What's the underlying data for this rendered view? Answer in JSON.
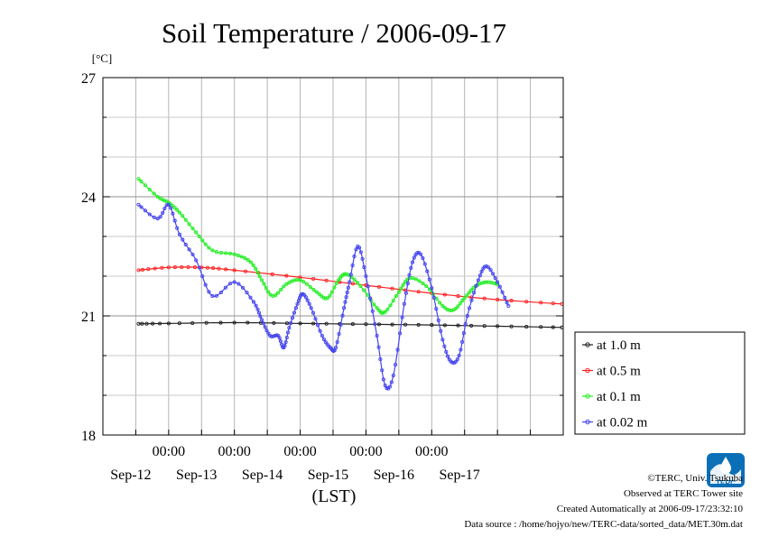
{
  "chart_data": {
    "type": "line",
    "title": "Soil Temperature / 2006-09-17",
    "ylabel": "[°C]",
    "xlabel": "(LST)",
    "ylim": [
      18,
      27
    ],
    "yticks": [
      18,
      21,
      24,
      27
    ],
    "x_range": [
      "2006-09-11 00:00",
      "2006-09-18 00:00"
    ],
    "time_ticks": [
      "00:00",
      "00:00",
      "00:00",
      "00:00",
      "00:00"
    ],
    "day_labels": [
      "Sep-12",
      "Sep-13",
      "Sep-14",
      "Sep-15",
      "Sep-16",
      "Sep-17"
    ],
    "grid": true,
    "legend_position": "right",
    "series": [
      {
        "name": "at 1.0 m",
        "color": "#222222",
        "points": [
          [
            "2006-09-11 13:00",
            20.8
          ],
          [
            "2006-09-12 00:00",
            20.81
          ],
          [
            "2006-09-13 00:00",
            20.83
          ],
          [
            "2006-09-14 00:00",
            20.81
          ],
          [
            "2006-09-15 00:00",
            20.79
          ],
          [
            "2006-09-16 00:00",
            20.77
          ],
          [
            "2006-09-17 00:00",
            20.74
          ],
          [
            "2006-09-17 23:30",
            20.71
          ]
        ]
      },
      {
        "name": "at 0.5 m",
        "color": "#ff2222",
        "points": [
          [
            "2006-09-11 13:00",
            22.15
          ],
          [
            "2006-09-12 00:00",
            22.22
          ],
          [
            "2006-09-12 12:00",
            22.22
          ],
          [
            "2006-09-13 00:00",
            22.15
          ],
          [
            "2006-09-14 00:00",
            21.97
          ],
          [
            "2006-09-15 00:00",
            21.77
          ],
          [
            "2006-09-16 00:00",
            21.57
          ],
          [
            "2006-09-17 00:00",
            21.41
          ],
          [
            "2006-09-17 23:30",
            21.3
          ]
        ]
      },
      {
        "name": "at 0.1 m",
        "color": "#22ee22",
        "points": [
          [
            "2006-09-11 13:00",
            24.45
          ],
          [
            "2006-09-11 20:00",
            24.0
          ],
          [
            "2006-09-12 00:00",
            23.85
          ],
          [
            "2006-09-12 04:00",
            23.6
          ],
          [
            "2006-09-12 10:00",
            23.1
          ],
          [
            "2006-09-12 16:00",
            22.65
          ],
          [
            "2006-09-13 00:00",
            22.55
          ],
          [
            "2006-09-13 06:00",
            22.35
          ],
          [
            "2006-09-13 10:00",
            21.9
          ],
          [
            "2006-09-13 14:00",
            21.5
          ],
          [
            "2006-09-13 19:00",
            21.8
          ],
          [
            "2006-09-14 00:00",
            21.9
          ],
          [
            "2006-09-14 06:00",
            21.6
          ],
          [
            "2006-09-14 10:00",
            21.45
          ],
          [
            "2006-09-14 14:00",
            21.9
          ],
          [
            "2006-09-14 17:00",
            22.05
          ],
          [
            "2006-09-14 22:00",
            21.75
          ],
          [
            "2006-09-15 04:00",
            21.2
          ],
          [
            "2006-09-15 07:00",
            21.1
          ],
          [
            "2006-09-15 12:00",
            21.6
          ],
          [
            "2006-09-15 16:00",
            21.95
          ],
          [
            "2006-09-15 22:00",
            21.75
          ],
          [
            "2006-09-16 04:00",
            21.25
          ],
          [
            "2006-09-16 08:00",
            21.15
          ],
          [
            "2006-09-16 12:00",
            21.45
          ],
          [
            "2006-09-16 16:00",
            21.75
          ],
          [
            "2006-09-16 20:00",
            21.85
          ],
          [
            "2006-09-17 00:00",
            21.8
          ]
        ]
      },
      {
        "name": "at 0.02 m",
        "color": "#4444ee",
        "points": [
          [
            "2006-09-11 13:00",
            23.8
          ],
          [
            "2006-09-11 20:00",
            23.45
          ],
          [
            "2006-09-12 00:00",
            23.8
          ],
          [
            "2006-09-12 04:00",
            23.05
          ],
          [
            "2006-09-12 10:00",
            22.4
          ],
          [
            "2006-09-12 16:00",
            21.5
          ],
          [
            "2006-09-13 00:00",
            21.85
          ],
          [
            "2006-09-13 07:00",
            21.35
          ],
          [
            "2006-09-13 10:00",
            20.9
          ],
          [
            "2006-09-13 13:00",
            20.5
          ],
          [
            "2006-09-13 16:00",
            20.5
          ],
          [
            "2006-09-13 18:00",
            20.2
          ],
          [
            "2006-09-13 20:00",
            20.7
          ],
          [
            "2006-09-13 23:00",
            21.3
          ],
          [
            "2006-09-14 01:00",
            21.55
          ],
          [
            "2006-09-14 04:00",
            21.2
          ],
          [
            "2006-09-14 08:00",
            20.5
          ],
          [
            "2006-09-14 11:00",
            20.2
          ],
          [
            "2006-09-14 13:00",
            20.2
          ],
          [
            "2006-09-14 16:00",
            21.2
          ],
          [
            "2006-09-14 18:00",
            21.85
          ],
          [
            "2006-09-14 21:00",
            22.75
          ],
          [
            "2006-09-15 00:00",
            22.0
          ],
          [
            "2006-09-15 04:00",
            20.5
          ],
          [
            "2006-09-15 07:00",
            19.25
          ],
          [
            "2006-09-15 10:00",
            19.5
          ],
          [
            "2006-09-15 14:00",
            21.3
          ],
          [
            "2006-09-15 17:00",
            22.35
          ],
          [
            "2006-09-15 20:00",
            22.55
          ],
          [
            "2006-09-16 00:00",
            21.7
          ],
          [
            "2006-09-16 04:00",
            20.4
          ],
          [
            "2006-09-16 07:00",
            19.85
          ],
          [
            "2006-09-16 10:00",
            20.0
          ],
          [
            "2006-09-16 13:00",
            21.0
          ],
          [
            "2006-09-16 17:00",
            21.9
          ],
          [
            "2006-09-16 20:00",
            22.25
          ],
          [
            "2006-09-17 00:00",
            21.85
          ],
          [
            "2006-09-17 04:00",
            21.25
          ]
        ]
      }
    ]
  },
  "credits": {
    "copyright": "©TERC, Univ. Tsukuba",
    "site": "Observed at TERC Tower site",
    "created": "Created Automatically at 2006-09-17/23:32:10",
    "source": "Data source : /home/hojyo/new/TERC-data/sorted_data/MET.30m.dat"
  },
  "logo": {
    "text": "TERC",
    "color": "#0b6fb8"
  }
}
